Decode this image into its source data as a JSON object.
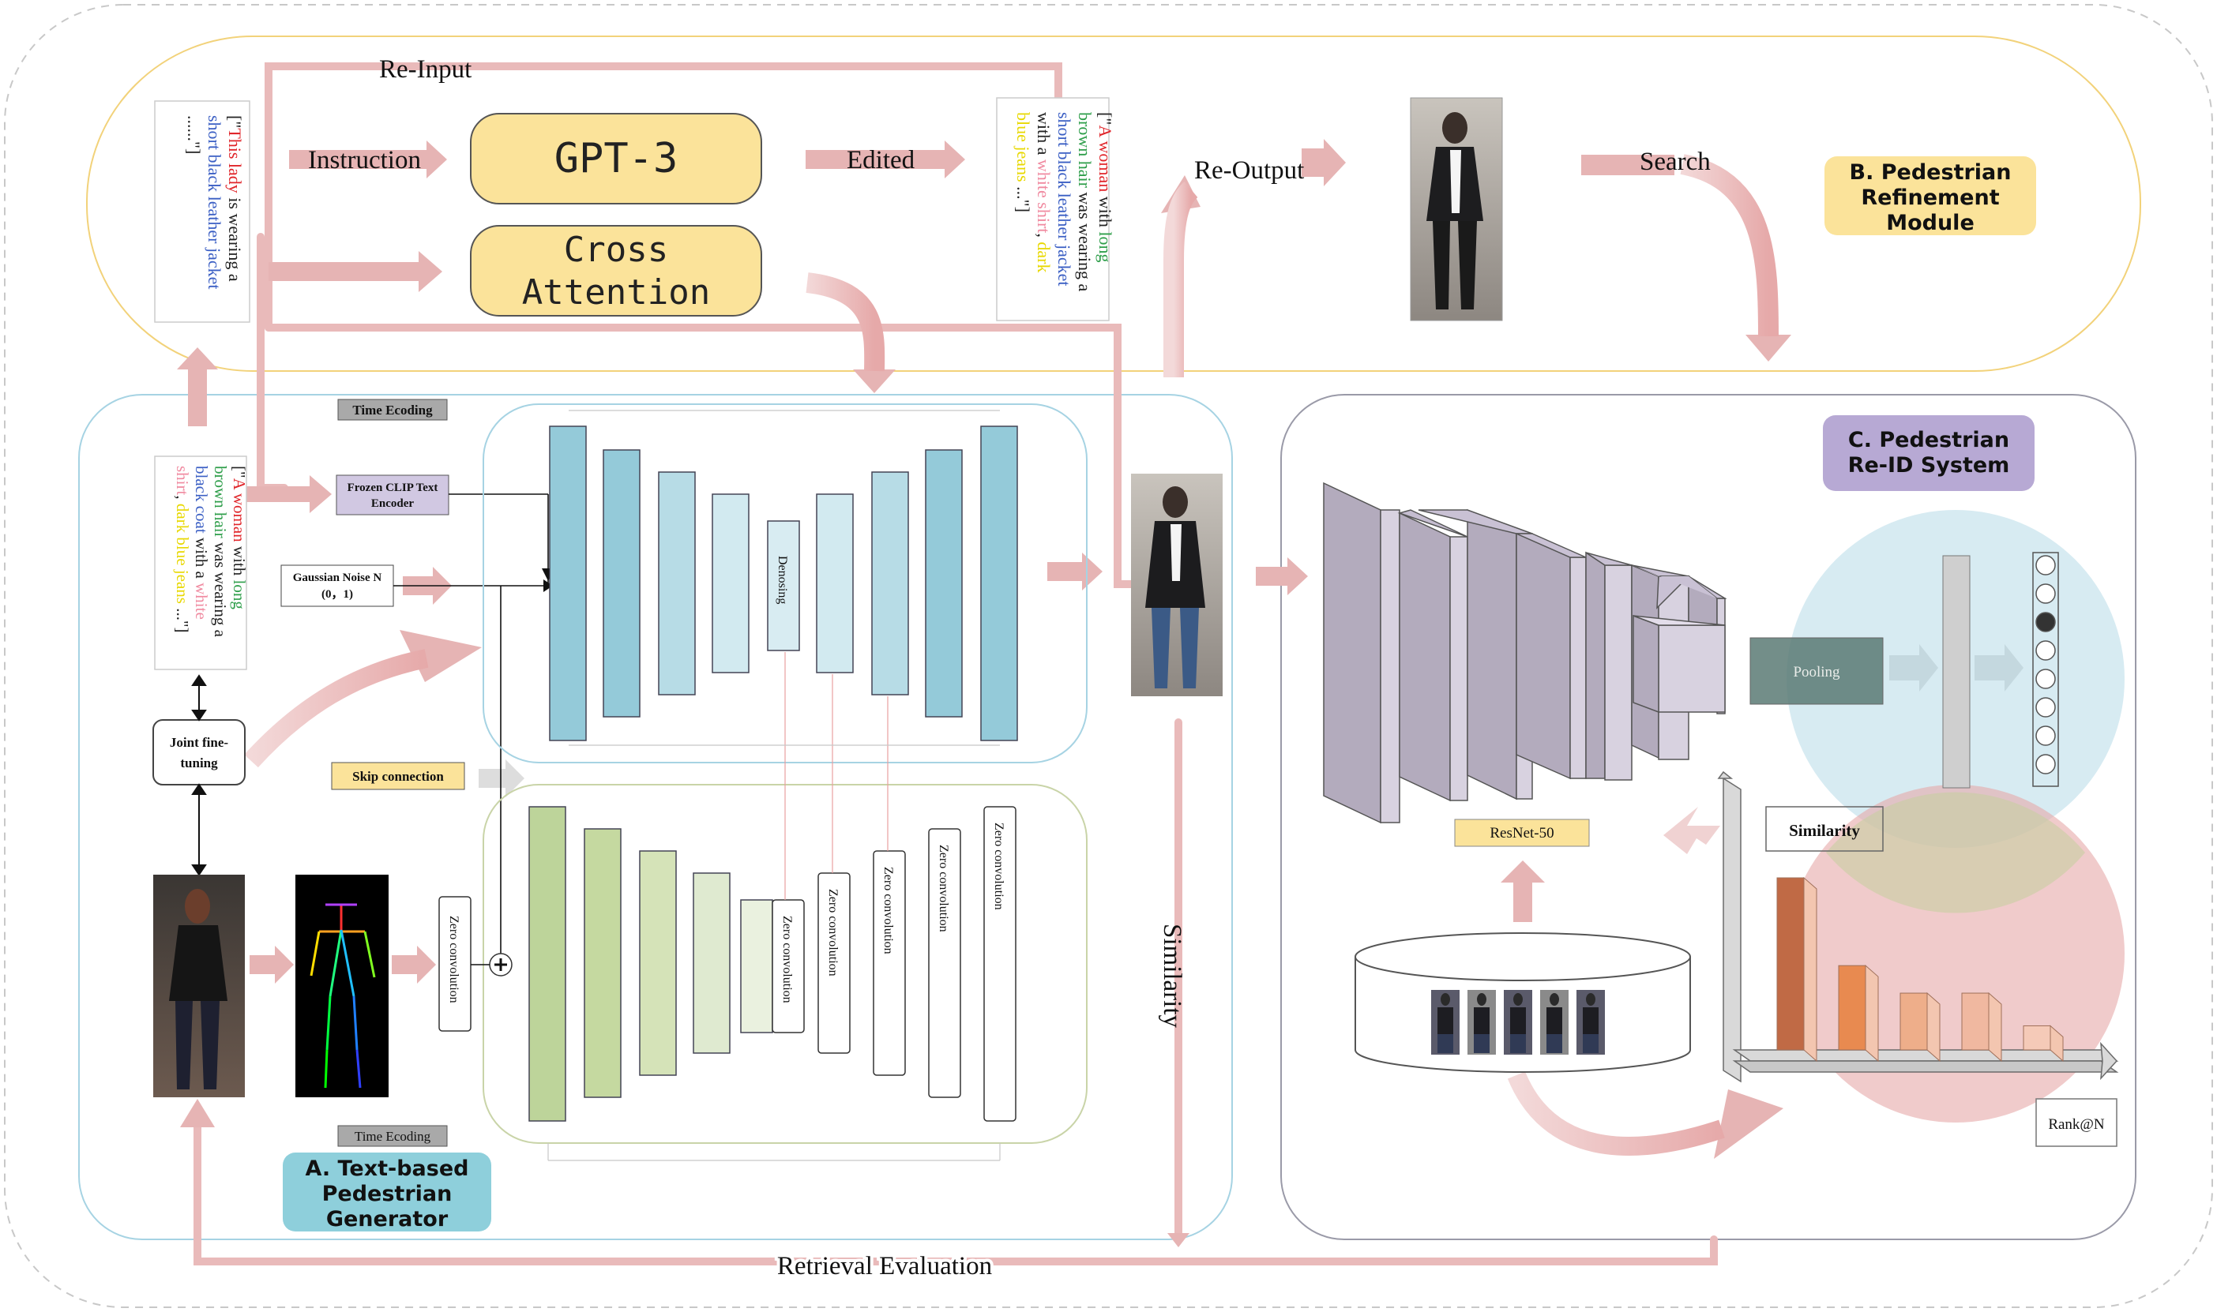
{
  "modules": {
    "a_label": [
      "A. Text-based",
      "Pedestrian",
      "Generator"
    ],
    "b_label": [
      "B. Pedestrian",
      "Refinement",
      "Module"
    ],
    "c_label": [
      "C. Pedestrian",
      "Re-ID System"
    ]
  },
  "refinement": {
    "gpt3": "GPT-3",
    "cross_attention": [
      "Cross",
      "Attention"
    ],
    "re_input": "Re-Input",
    "instruction": "Instruction",
    "edited": "Edited",
    "re_output": "Re-Output",
    "search": "Search",
    "input_prompt": [
      [
        {
          "t": "[\"",
          "c": "#222222"
        },
        {
          "t": "This lady",
          "c": "#e0262b"
        },
        {
          "t": " is wearing a",
          "c": "#222222"
        }
      ],
      [
        {
          "t": "short black leather jacket",
          "c": "#3b5fc4"
        }
      ],
      [
        {
          "t": "......\"]",
          "c": "#222222"
        }
      ]
    ],
    "edited_prompt": [
      [
        {
          "t": "[\"",
          "c": "#222222"
        },
        {
          "t": "A woman",
          "c": "#e0262b"
        },
        {
          "t": " with ",
          "c": "#222222"
        },
        {
          "t": "long",
          "c": "#2e9e4a"
        }
      ],
      [
        {
          "t": "brown hair",
          "c": "#2e9e4a"
        },
        {
          "t": " was wearing a",
          "c": "#222222"
        }
      ],
      [
        {
          "t": "short black leather jacket",
          "c": "#3b5fc4"
        }
      ],
      [
        {
          "t": "with a ",
          "c": "#222222"
        },
        {
          "t": "white shirt",
          "c": "#f08aa0"
        },
        {
          "t": ", ",
          "c": "#222222"
        },
        {
          "t": "dark",
          "c": "#e8d800"
        }
      ],
      [
        {
          "t": "blue jeans",
          "c": "#e8d800"
        },
        {
          "t": " ...\"]",
          "c": "#222222"
        }
      ]
    ]
  },
  "generator": {
    "time_encoding_top": "Time Ecoding",
    "time_encoding_bottom": "Time Ecoding",
    "clip_encoder": [
      "Frozen CLIP Text",
      "Encoder"
    ],
    "gaussian_noise": [
      "Gaussian Noise N",
      "(0，1)"
    ],
    "joint_finetuning": [
      "Joint fine-",
      "tuning"
    ],
    "skip_connection": "Skip connection",
    "denoising": "Denosing",
    "zero_convolution": "Zero convolution",
    "prompt": [
      [
        {
          "t": "[\"",
          "c": "#222222"
        },
        {
          "t": "A woman",
          "c": "#e0262b"
        },
        {
          "t": " with ",
          "c": "#222222"
        },
        {
          "t": "long",
          "c": "#2e9e4a"
        }
      ],
      [
        {
          "t": "brown hair",
          "c": "#2e9e4a"
        },
        {
          "t": " was wearing a",
          "c": "#222222"
        }
      ],
      [
        {
          "t": "black coat",
          "c": "#3b5fc4"
        },
        {
          "t": " with a ",
          "c": "#222222"
        },
        {
          "t": "white",
          "c": "#f08aa0"
        }
      ],
      [
        {
          "t": "shirt",
          "c": "#f08aa0"
        },
        {
          "t": ", ",
          "c": "#222222"
        },
        {
          "t": "dark blue jeans",
          "c": "#e8d800"
        },
        {
          "t": " ...\"]",
          "c": "#222222"
        }
      ]
    ]
  },
  "reid": {
    "resnet": "ResNet-50",
    "pooling": "Pooling",
    "similarity_box": "Similarity",
    "rank": "Rank@N",
    "similarity_vertical": "Similarity",
    "retrieval_evaluation": "Retrieval Evaluation",
    "similarity_scores": [
      1.0,
      0.49,
      0.33,
      0.33,
      0.14
    ]
  },
  "colors": {
    "arrow": "#e8b8b8",
    "gpt_box": "#fbe39a",
    "module_a": "#8ecfdb",
    "module_b": "#fbe39a",
    "module_c": "#b7a9d4",
    "unet": "#94cad9",
    "controlnet": "#c5d9a0"
  },
  "icons": [
    "woman-photo-icon",
    "pose-skeleton-icon",
    "pedestrian-photo-icon",
    "database-icon",
    "plus-icon"
  ]
}
